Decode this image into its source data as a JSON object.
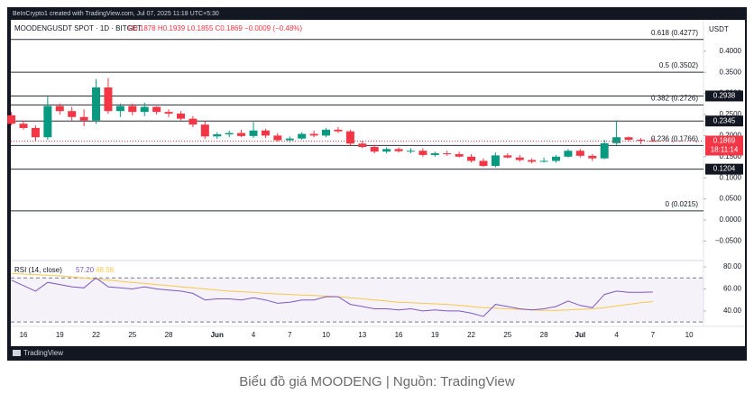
{
  "chart_data": {
    "type": "candlestick",
    "credit": "BeInCrypto1 created with TradingView.com, Jul 07, 2025 11:18 UTC+5:30",
    "symbol": "MOODENGUSDT SPOT · 1D · BITGET",
    "ohlc_text": "O0.1878 H0.1939 L0.1855 C0.1869 −0.0009 (−0.48%)",
    "currency": "USDT",
    "countdown": "18:11:14",
    "brand": "TradingView",
    "caption": "Biểu đồ giá MOODENG | Nguồn: TradingView",
    "up_color": "#089981",
    "down_color": "#f23645",
    "categories": [
      null,
      "16",
      null,
      null,
      "19",
      null,
      null,
      "22",
      null,
      null,
      "25",
      null,
      null,
      "28",
      null,
      null,
      null,
      "Jun",
      null,
      null,
      "4",
      null,
      null,
      "7",
      null,
      null,
      "10",
      null,
      null,
      "13",
      null,
      null,
      "16",
      null,
      null,
      "19",
      null,
      null,
      "22",
      null,
      null,
      "25",
      null,
      null,
      "28",
      null,
      null,
      "Jul",
      null,
      null,
      "4",
      null,
      null,
      "7",
      null,
      null,
      "10",
      null
    ],
    "open": [
      0.248,
      0.228,
      0.218,
      0.196,
      0.27,
      0.258,
      0.244,
      0.236,
      0.314,
      0.258,
      0.27,
      0.256,
      0.268,
      0.256,
      0.252,
      0.24,
      0.226,
      0.198,
      0.203,
      0.206,
      0.199,
      0.212,
      0.2,
      0.189,
      0.193,
      0.204,
      0.2,
      0.214,
      0.21,
      0.181,
      0.173,
      0.162,
      0.168,
      0.163,
      0.164,
      0.154,
      0.158,
      0.156,
      0.15,
      0.14,
      0.128,
      0.153,
      0.148,
      0.142,
      0.138,
      0.14,
      0.15,
      0.164,
      0.152,
      0.146,
      0.182,
      0.196,
      0.19,
      0.1878,
      null,
      null,
      null,
      null
    ],
    "high": [
      0.256,
      0.236,
      0.224,
      0.292,
      0.276,
      0.268,
      0.262,
      0.334,
      0.336,
      0.276,
      0.276,
      0.278,
      0.27,
      0.262,
      0.258,
      0.246,
      0.234,
      0.208,
      0.212,
      0.214,
      0.232,
      0.216,
      0.206,
      0.198,
      0.208,
      0.212,
      0.218,
      0.22,
      0.214,
      0.188,
      0.178,
      0.172,
      0.172,
      0.17,
      0.17,
      0.162,
      0.164,
      0.162,
      0.156,
      0.146,
      0.16,
      0.158,
      0.154,
      0.146,
      0.148,
      0.154,
      0.168,
      0.168,
      0.156,
      0.19,
      0.236,
      0.198,
      0.194,
      0.1939,
      null,
      null,
      null,
      null
    ],
    "low": [
      0.224,
      0.214,
      0.186,
      0.19,
      0.25,
      0.236,
      0.222,
      0.228,
      0.252,
      0.244,
      0.248,
      0.246,
      0.25,
      0.244,
      0.236,
      0.22,
      0.192,
      0.192,
      0.196,
      0.196,
      0.194,
      0.194,
      0.186,
      0.184,
      0.19,
      0.196,
      0.196,
      0.206,
      0.176,
      0.17,
      0.158,
      0.158,
      0.16,
      0.158,
      0.15,
      0.15,
      0.152,
      0.148,
      0.136,
      0.126,
      0.125,
      0.146,
      0.138,
      0.134,
      0.136,
      0.136,
      0.148,
      0.148,
      0.14,
      0.144,
      0.178,
      0.186,
      0.18,
      0.1855,
      null,
      null,
      null,
      null
    ],
    "close": [
      0.228,
      0.218,
      0.196,
      0.27,
      0.258,
      0.244,
      0.236,
      0.314,
      0.258,
      0.27,
      0.256,
      0.268,
      0.256,
      0.252,
      0.24,
      0.226,
      0.198,
      0.203,
      0.206,
      0.199,
      0.212,
      0.2,
      0.189,
      0.193,
      0.204,
      0.2,
      0.214,
      0.21,
      0.181,
      0.173,
      0.162,
      0.168,
      0.163,
      0.164,
      0.154,
      0.158,
      0.156,
      0.15,
      0.14,
      0.128,
      0.153,
      0.148,
      0.142,
      0.138,
      0.14,
      0.15,
      0.164,
      0.152,
      0.146,
      0.182,
      0.196,
      0.19,
      0.188,
      0.1869,
      null,
      null,
      null,
      null
    ],
    "ylim": [
      -0.09,
      0.47
    ],
    "yticks": [
      {
        "value": 0.4,
        "label": "0.4000"
      },
      {
        "value": 0.35,
        "label": "0.3500"
      },
      {
        "value": 0.3,
        "label": "0.3000"
      },
      {
        "value": 0.25,
        "label": "0.2500"
      },
      {
        "value": 0.2,
        "label": "0.2000"
      },
      {
        "value": 0.15,
        "label": "0.1500"
      },
      {
        "value": 0.1,
        "label": "0.1000"
      },
      {
        "value": 0.05,
        "label": "0.0500"
      },
      {
        "value": 0,
        "label": "0.0000"
      },
      {
        "value": -0.05,
        "label": "−0.0500"
      }
    ],
    "grid": false,
    "fib_levels": [
      {
        "value": 0.4277,
        "label": "0.618 (0.4277)"
      },
      {
        "value": 0.3502,
        "label": "0.5 (0.3502)"
      },
      {
        "value": 0.2726,
        "label": "0.382 (0.2726)"
      },
      {
        "value": 0.1766,
        "label": "0.236 (0.1766)"
      },
      {
        "value": 0.0215,
        "label": "0 (0.0215)"
      }
    ],
    "price_levels": [
      0.2938,
      0.2345,
      0.1204
    ],
    "rsi": {
      "name": "RSI (14, close)",
      "color": "#7e57c2",
      "last_label": "57.20",
      "values": [
        68,
        63,
        58,
        66,
        64,
        62,
        61,
        70,
        62,
        61,
        60,
        62,
        60,
        59,
        58,
        56,
        50,
        51,
        51,
        50,
        52,
        50,
        47,
        48,
        50,
        50,
        53,
        53,
        46,
        44,
        42,
        42,
        41,
        42,
        40,
        41,
        40,
        40,
        38,
        35,
        46,
        44,
        42,
        41,
        42,
        44,
        49,
        45,
        43,
        55,
        58,
        57,
        57,
        57.2,
        null,
        null,
        null,
        null
      ]
    },
    "rsi_ma": {
      "color": "#f7c948",
      "last_label": "48.56",
      "values": [
        74,
        73.5,
        73,
        72.5,
        72,
        71,
        70,
        69,
        68,
        67,
        66,
        65,
        64,
        63,
        62,
        61,
        60,
        59,
        58,
        57.5,
        57,
        56,
        55.5,
        55,
        54.5,
        54,
        53.5,
        53,
        52,
        51,
        50,
        49,
        48,
        47.5,
        47,
        46.5,
        46,
        45,
        44,
        43,
        42.5,
        42,
        41.5,
        41,
        40.5,
        40.5,
        41,
        41.5,
        42,
        43,
        44.5,
        46,
        47.5,
        48.56,
        null,
        null,
        null,
        null
      ]
    },
    "rsi_ylim": [
      26,
      85
    ],
    "rsi_yticks": [
      {
        "value": 80,
        "label": "80.00"
      },
      {
        "value": 60,
        "label": "60.00"
      },
      {
        "value": 40,
        "label": "40.00"
      }
    ],
    "rsi_band": [
      30,
      70
    ]
  }
}
